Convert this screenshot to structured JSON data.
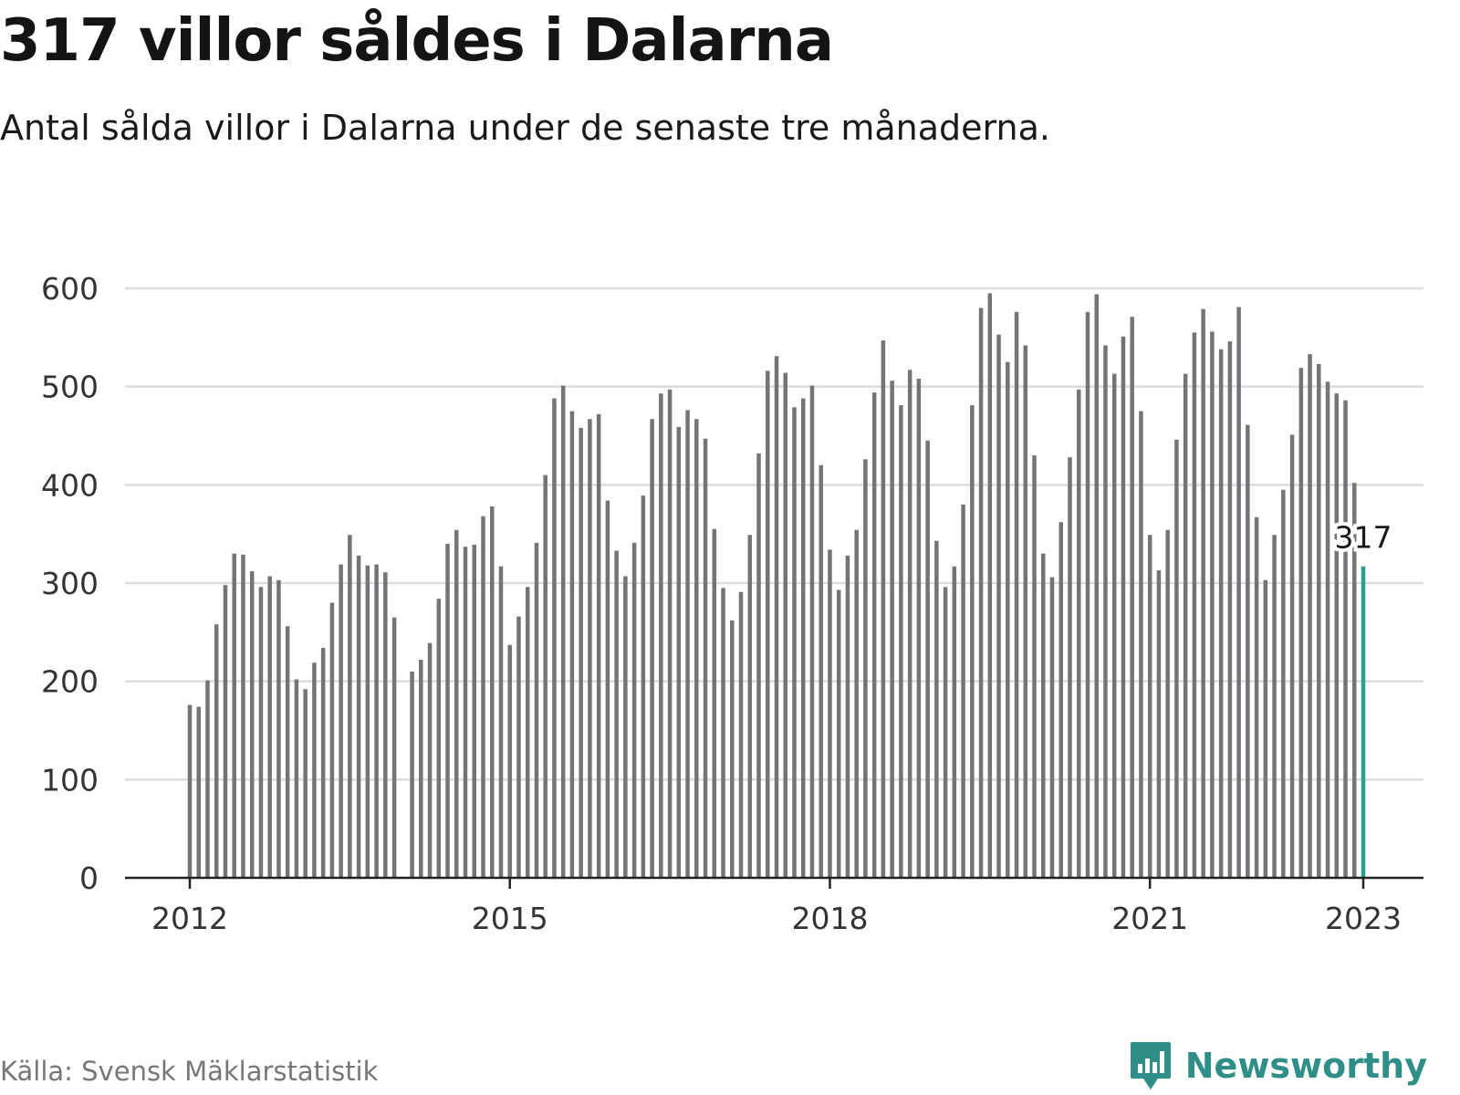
{
  "header": {
    "title": "317 villor såldes i Dalarna",
    "subtitle": "Antal sålda villor i Dalarna under de senaste tre månaderna."
  },
  "footer": {
    "source": "Källa: Svensk Mäklarstatistik",
    "brand": "Newsworthy",
    "brand_icon": "bar-chart-speech-bubble-icon"
  },
  "colors": {
    "bar": "#737378",
    "highlight": "#2a9d8f",
    "grid": "#dcdcdc",
    "axis": "#222222",
    "brand": "#2f8f88"
  },
  "chart_data": {
    "type": "bar",
    "series": [
      {
        "values": [
          176,
          174,
          201,
          258,
          298,
          330,
          329,
          312,
          296,
          307,
          303,
          256,
          202,
          192,
          219,
          234,
          280,
          319,
          349,
          328,
          318,
          319,
          311,
          265,
          null,
          210,
          222,
          239,
          284,
          340,
          354,
          337,
          339,
          368,
          378,
          317,
          237,
          266,
          296,
          341,
          410,
          488,
          501,
          475,
          458,
          467,
          472,
          384,
          333,
          307,
          341,
          389,
          467,
          493,
          497,
          459,
          476,
          467,
          447,
          355,
          295,
          262,
          291,
          349,
          432,
          516,
          531,
          514,
          479,
          488,
          501,
          420,
          334,
          293,
          328,
          354,
          426,
          494,
          547,
          506,
          481,
          517,
          508,
          445,
          343,
          296,
          317,
          380,
          481,
          580,
          595,
          553,
          525,
          576,
          542,
          430,
          330,
          306,
          362,
          428,
          497,
          576,
          594,
          542,
          513,
          551,
          571,
          475,
          349,
          313,
          354,
          446,
          513,
          555,
          579,
          556,
          538,
          546,
          581,
          461,
          367,
          303,
          349,
          395,
          451,
          519,
          533,
          523,
          505,
          493,
          486,
          402,
          317
        ]
      }
    ],
    "highlight_label": "317",
    "x_ticks": [
      "2012",
      "2015",
      "2018",
      "2021",
      "2023"
    ],
    "y_ticks": [
      "0",
      "100",
      "200",
      "300",
      "400",
      "500",
      "600"
    ],
    "x_range": [
      "2012-01",
      "2023-01"
    ],
    "ylim": [
      0,
      600
    ],
    "grid": true,
    "legend": "none"
  }
}
